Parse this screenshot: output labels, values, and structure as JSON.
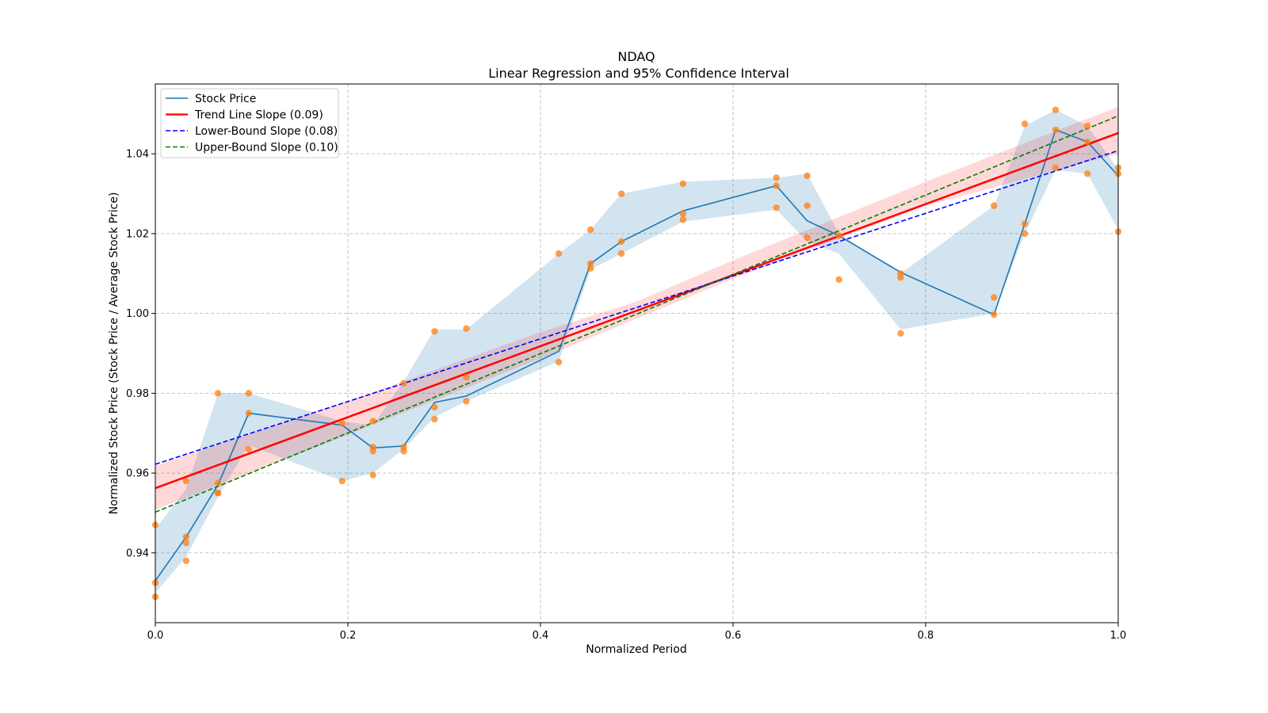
{
  "chart_data": {
    "type": "line",
    "title": "NDAQ",
    "subtitle": "Linear Regression and 95% Confidence Interval",
    "xlabel": "Normalized Period",
    "ylabel": "Normalized Stock Price (Stock Price / Average Stock Price)",
    "xlim": [
      0.0,
      1.0
    ],
    "ylim": [
      0.9225,
      1.0575
    ],
    "xticks": [
      0.0,
      0.2,
      0.4,
      0.6,
      0.8,
      1.0
    ],
    "xtick_labels": [
      "0.0",
      "0.2",
      "0.4",
      "0.6",
      "0.8",
      "1.0"
    ],
    "yticks": [
      0.94,
      0.96,
      0.98,
      1.0,
      1.02,
      1.04
    ],
    "ytick_labels": [
      "0.94",
      "0.96",
      "0.98",
      "1.00",
      "1.02",
      "1.04"
    ],
    "grid": true,
    "legend_position": "top-left",
    "series": [
      {
        "name": "Stock Price",
        "kind": "line",
        "color": "#1f77b4",
        "x": [
          0.0,
          0.032,
          0.065,
          0.097,
          0.194,
          0.226,
          0.258,
          0.29,
          0.323,
          0.419,
          0.452,
          0.484,
          0.548,
          0.645,
          0.677,
          0.71,
          0.774,
          0.871,
          0.903,
          0.935,
          0.968,
          1.0
        ],
        "y": [
          0.933,
          0.944,
          0.957,
          0.975,
          0.972,
          0.9663,
          0.9668,
          0.9777,
          0.9793,
          0.9905,
          1.0125,
          1.018,
          1.0257,
          1.032,
          1.0232,
          1.0195,
          1.0103,
          0.9997,
          1.0225,
          1.046,
          1.043,
          1.0345
        ]
      },
      {
        "name": "Trend Line Slope (0.09)",
        "kind": "line",
        "color": "#ff0000",
        "x": [
          0.0,
          1.0
        ],
        "y": [
          0.9562,
          1.0452
        ]
      },
      {
        "name": "Lower-Bound Slope (0.08)",
        "kind": "dashed",
        "color": "#0000ff",
        "x": [
          0.0,
          1.0
        ],
        "y": [
          0.9622,
          1.0408
        ]
      },
      {
        "name": "Upper-Bound Slope (0.10)",
        "kind": "dashed",
        "color": "#008000",
        "x": [
          0.0,
          1.0
        ],
        "y": [
          0.9502,
          1.0495
        ]
      }
    ],
    "scatter": {
      "color": "#ff7f0e",
      "x": [
        0.0,
        0.0,
        0.0,
        0.032,
        0.032,
        0.032,
        0.032,
        0.065,
        0.065,
        0.065,
        0.065,
        0.097,
        0.097,
        0.097,
        0.194,
        0.194,
        0.226,
        0.226,
        0.226,
        0.226,
        0.258,
        0.258,
        0.258,
        0.29,
        0.29,
        0.29,
        0.323,
        0.323,
        0.323,
        0.419,
        0.419,
        0.452,
        0.452,
        0.452,
        0.484,
        0.484,
        0.484,
        0.548,
        0.548,
        0.548,
        0.645,
        0.645,
        0.645,
        0.677,
        0.677,
        0.677,
        0.71,
        0.71,
        0.774,
        0.774,
        0.774,
        0.871,
        0.871,
        0.871,
        0.903,
        0.903,
        0.903,
        0.935,
        0.935,
        0.935,
        0.968,
        0.968,
        0.968,
        1.0,
        1.0,
        1.0
      ],
      "y": [
        0.947,
        0.9325,
        0.929,
        0.958,
        0.944,
        0.9425,
        0.938,
        0.98,
        0.9575,
        0.955,
        0.955,
        0.98,
        0.975,
        0.966,
        0.9725,
        0.958,
        0.973,
        0.9665,
        0.9655,
        0.9595,
        0.9825,
        0.9665,
        0.9655,
        0.9955,
        0.9765,
        0.9735,
        0.9962,
        0.984,
        0.978,
        1.015,
        0.9878,
        1.021,
        1.0125,
        1.0113,
        1.03,
        1.018,
        1.015,
        1.0325,
        1.025,
        1.0235,
        1.034,
        1.032,
        1.0265,
        1.0345,
        1.027,
        1.019,
        1.0195,
        1.0085,
        1.01,
        1.009,
        0.995,
        1.027,
        1.004,
        0.9997,
        1.0475,
        1.0225,
        1.02,
        1.051,
        1.046,
        1.0365,
        1.047,
        1.043,
        1.035,
        1.0365,
        1.035,
        1.0205
      ]
    },
    "bands": [
      {
        "color": "#1f77b4",
        "x": [
          0.0,
          0.032,
          0.065,
          0.097,
          0.194,
          0.226,
          0.258,
          0.29,
          0.323,
          0.419,
          0.452,
          0.484,
          0.548,
          0.645,
          0.677,
          0.71,
          0.774,
          0.871,
          0.903,
          0.935,
          0.968,
          1.0
        ],
        "lower": [
          0.93,
          0.939,
          0.954,
          0.967,
          0.958,
          0.96,
          0.966,
          0.974,
          0.978,
          0.988,
          1.011,
          1.015,
          1.023,
          1.026,
          1.018,
          1.015,
          0.996,
          1.0,
          1.02,
          1.036,
          1.035,
          1.021
        ],
        "upper": [
          0.946,
          0.956,
          0.98,
          0.98,
          0.973,
          0.972,
          0.983,
          0.996,
          0.996,
          1.015,
          1.021,
          1.03,
          1.033,
          1.034,
          1.035,
          1.02,
          1.01,
          1.027,
          1.047,
          1.051,
          1.047,
          1.036
        ]
      },
      {
        "color": "#ff0000",
        "x": [
          0.0,
          0.2,
          0.4,
          0.5,
          0.6,
          0.8,
          1.0
        ],
        "lower": [
          0.9508,
          0.9696,
          0.9887,
          0.9987,
          1.0087,
          1.027,
          1.04
        ],
        "upper": [
          0.9618,
          0.978,
          0.9953,
          1.003,
          1.0133,
          1.033,
          1.0518
        ]
      }
    ]
  }
}
